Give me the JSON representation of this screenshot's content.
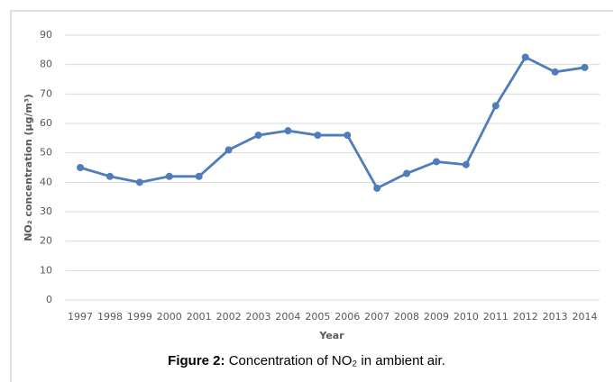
{
  "chart_data": {
    "type": "line",
    "x_label": "Year",
    "y_label": "NO₂ concentration (µg/m³)",
    "categories": [
      "1997",
      "1998",
      "1999",
      "2000",
      "2001",
      "2002",
      "2003",
      "2004",
      "2005",
      "2006",
      "2007",
      "2008",
      "2009",
      "2010",
      "2011",
      "2012",
      "2013",
      "2014"
    ],
    "series": [
      {
        "name": "NO₂",
        "color": "#4f7dbb",
        "values": [
          45,
          42,
          40,
          42,
          42,
          51,
          56,
          57.5,
          56,
          56,
          38,
          43,
          47,
          46,
          66,
          82.5,
          77.5,
          79
        ]
      }
    ],
    "ylim": [
      0,
      90
    ],
    "yticks": [
      0,
      10,
      20,
      30,
      40,
      50,
      60,
      70,
      80,
      90
    ],
    "grid": true
  },
  "caption": {
    "label": "Figure 2:",
    "text": "Concentration of NO₂ in ambient air."
  }
}
